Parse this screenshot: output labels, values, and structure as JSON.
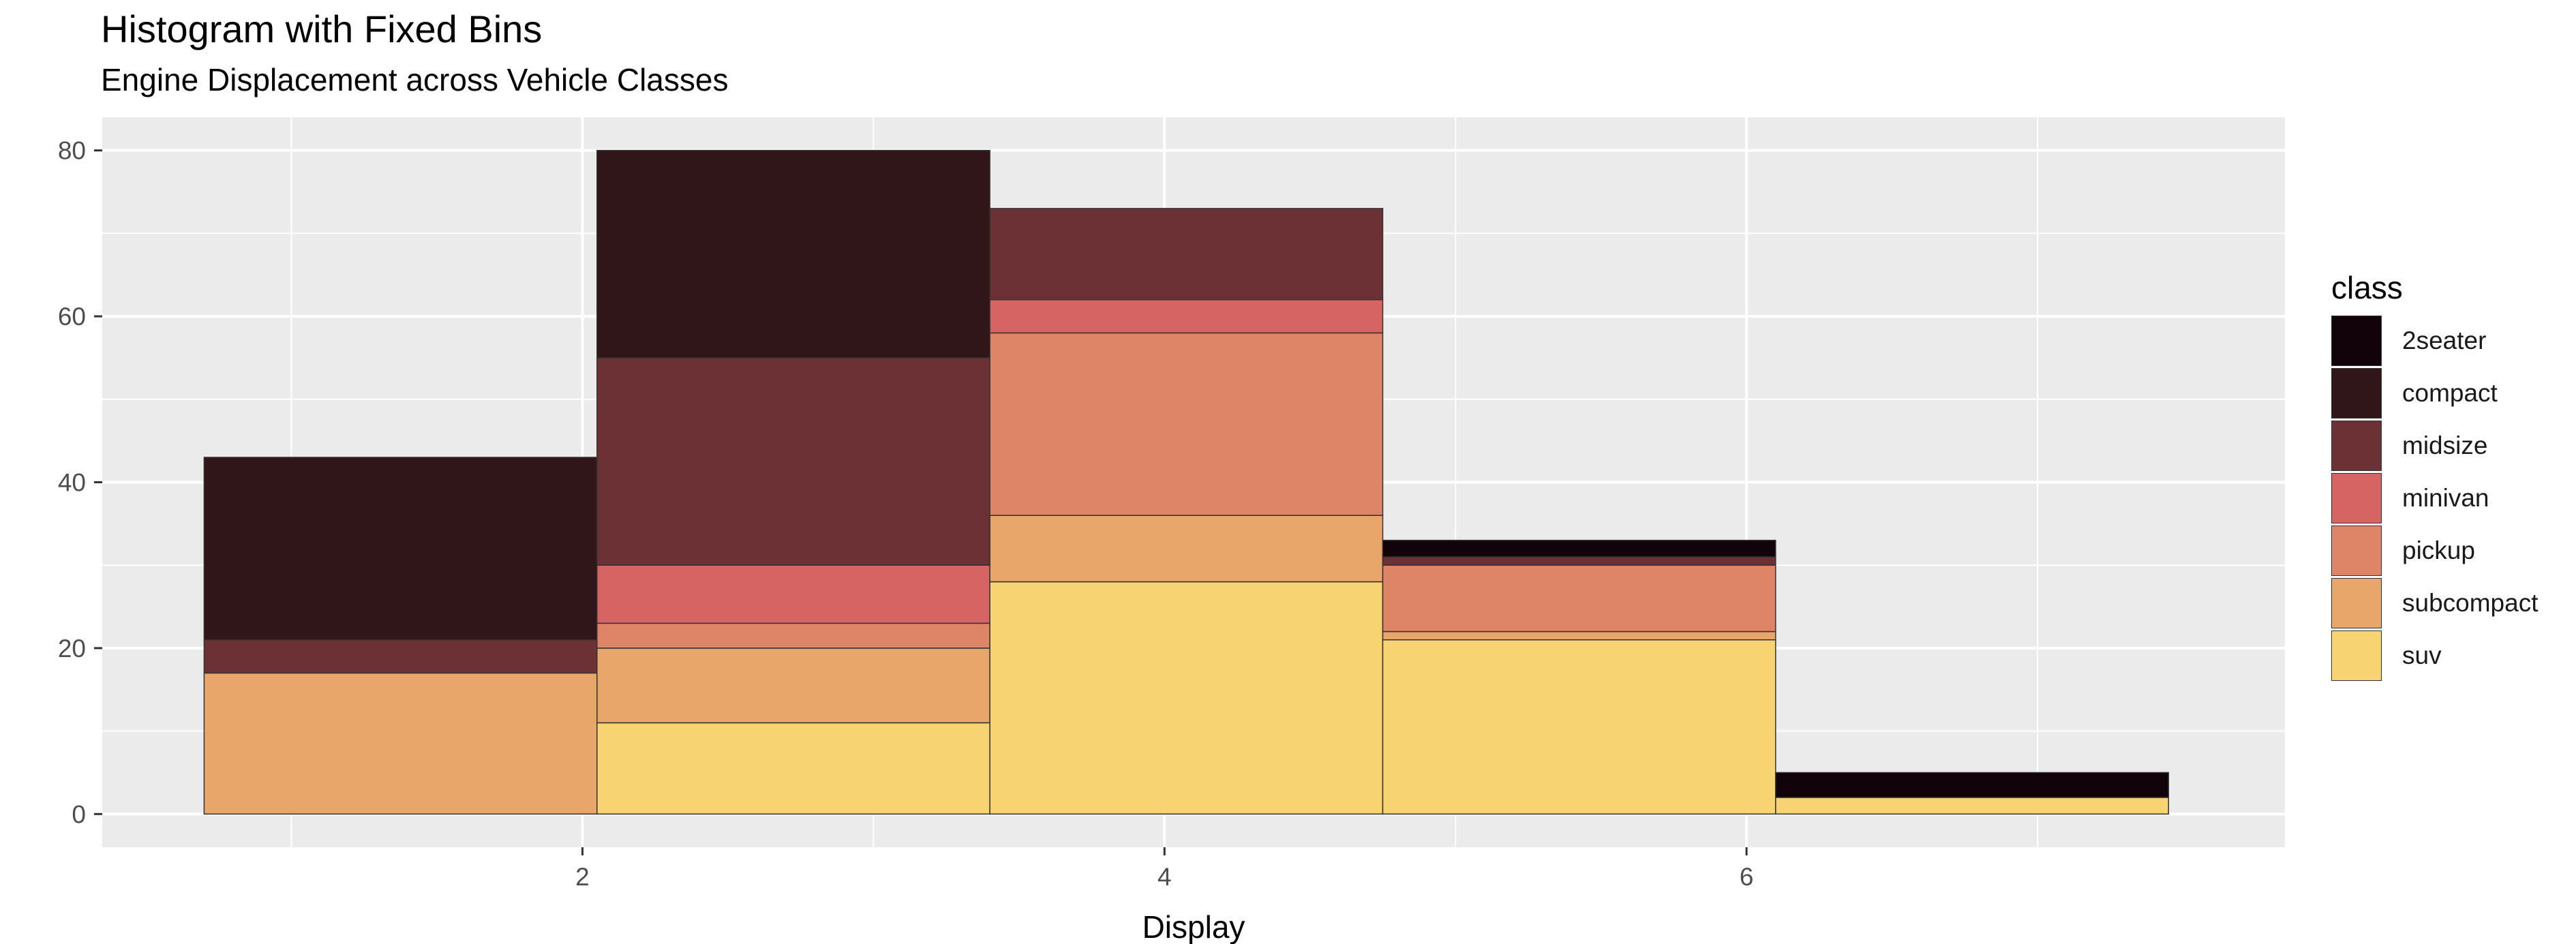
{
  "chart_data": {
    "type": "bar",
    "title": "Histogram with Fixed Bins",
    "subtitle": "Engine Displacement across Vehicle Classes",
    "xlabel": "Display",
    "ylabel": "",
    "xlim": [
      0.35,
      7.85
    ],
    "ylim": [
      -4,
      84
    ],
    "xticks": [
      2,
      4,
      6
    ],
    "yticks": [
      0,
      20,
      40,
      60,
      80
    ],
    "grid": true,
    "legend_title": "class",
    "legend_position": "right",
    "bins": [
      [
        0.7,
        2.05
      ],
      [
        2.05,
        3.4
      ],
      [
        3.4,
        4.75
      ],
      [
        4.75,
        6.1
      ],
      [
        6.1,
        7.45
      ]
    ],
    "series": [
      {
        "name": "suv",
        "color": "#F8D372",
        "values": [
          0,
          11,
          28,
          21,
          2
        ]
      },
      {
        "name": "subcompact",
        "color": "#E8A66A",
        "values": [
          17,
          9,
          8,
          1,
          0
        ]
      },
      {
        "name": "pickup",
        "color": "#DD8566",
        "values": [
          0,
          3,
          22,
          8,
          0
        ]
      },
      {
        "name": "minivan",
        "color": "#D66463",
        "values": [
          0,
          7,
          4,
          0,
          0
        ]
      },
      {
        "name": "midsize",
        "color": "#6C3134",
        "values": [
          4,
          25,
          11,
          1,
          0
        ]
      },
      {
        "name": "compact",
        "color": "#301519",
        "values": [
          22,
          25,
          0,
          0,
          0
        ]
      },
      {
        "name": "2seater",
        "color": "#12020A",
        "values": [
          0,
          0,
          0,
          2,
          3
        ]
      }
    ],
    "legend_order": [
      "2seater",
      "compact",
      "midsize",
      "minivan",
      "pickup",
      "subcompact",
      "suv"
    ]
  }
}
